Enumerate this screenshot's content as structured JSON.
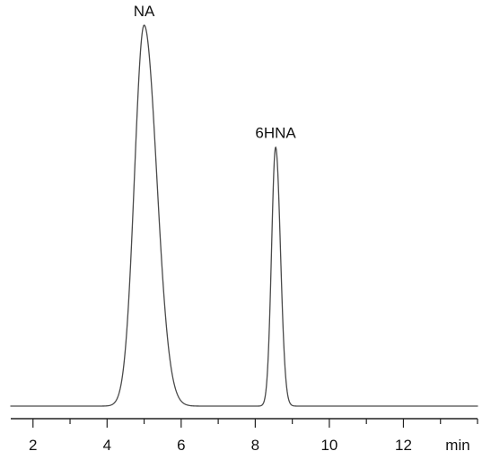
{
  "chart_data": {
    "type": "line",
    "title": "",
    "xlabel": "min",
    "ylabel": "",
    "xlim": [
      1.4,
      14.0
    ],
    "ylim": [
      0,
      1.0
    ],
    "grid": false,
    "xticks": [
      2,
      4,
      6,
      8,
      10,
      12
    ],
    "xtick_labels": [
      "2",
      "4",
      "6",
      "8",
      "10",
      "12"
    ],
    "x_unit_label": "min",
    "baseline": 0.0,
    "peaks": [
      {
        "label": "NA",
        "retention_time": 5.0,
        "height": 1.0,
        "sigma_left": 0.26,
        "sigma_right": 0.34
      },
      {
        "label": "6HNA",
        "retention_time": 8.55,
        "height": 0.68,
        "sigma_left": 0.11,
        "sigma_right": 0.13
      }
    ],
    "series": [
      {
        "x": [
          1.4,
          2.0,
          2.5,
          3.0,
          3.5,
          3.8,
          4.0,
          4.2,
          4.4,
          4.6,
          4.75,
          4.9,
          5.0,
          5.1,
          5.25,
          5.4,
          5.6,
          5.8,
          6.0,
          6.3,
          6.6,
          7.0,
          7.5,
          7.9,
          8.1,
          8.25,
          8.35,
          8.45,
          8.5,
          8.55,
          8.6,
          8.7,
          8.8,
          8.9,
          9.0,
          9.2,
          9.5,
          10.0,
          11.0,
          12.0,
          13.0,
          14.0
        ],
        "y": [
          0.0,
          0.002,
          0.004,
          0.008,
          0.02,
          0.05,
          0.09,
          0.17,
          0.32,
          0.55,
          0.76,
          0.94,
          1.0,
          0.98,
          0.88,
          0.7,
          0.45,
          0.25,
          0.12,
          0.05,
          0.025,
          0.012,
          0.008,
          0.02,
          0.07,
          0.2,
          0.35,
          0.55,
          0.64,
          0.68,
          0.66,
          0.5,
          0.27,
          0.11,
          0.05,
          0.015,
          0.005,
          0.002,
          0.001,
          0.0,
          0.0,
          0.0
        ]
      }
    ]
  },
  "colors": {
    "trace": "#4a4a4a",
    "axis": "#222222",
    "background": "#ffffff"
  }
}
